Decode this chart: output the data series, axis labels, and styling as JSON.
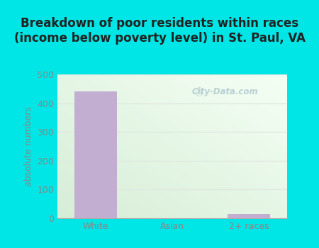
{
  "categories": [
    "White",
    "Asian",
    "2+ races"
  ],
  "values": [
    440,
    0,
    15
  ],
  "bar_color": "#c2aed0",
  "title": "Breakdown of poor residents within races\n(income below poverty level) in St. Paul, VA",
  "ylabel": "absolute numbers",
  "ylim": [
    0,
    500
  ],
  "yticks": [
    0,
    100,
    200,
    300,
    400,
    500
  ],
  "background_outer": "#00e5e5",
  "gradient_colors": [
    "#d6edd6",
    "#f5fff5"
  ],
  "title_fontsize": 12,
  "label_fontsize": 9,
  "tick_fontsize": 9,
  "title_color": "#222222",
  "tick_color": "#888888",
  "watermark": "City-Data.com",
  "grid_color": "#e0e8e0",
  "bar_width": 0.55
}
